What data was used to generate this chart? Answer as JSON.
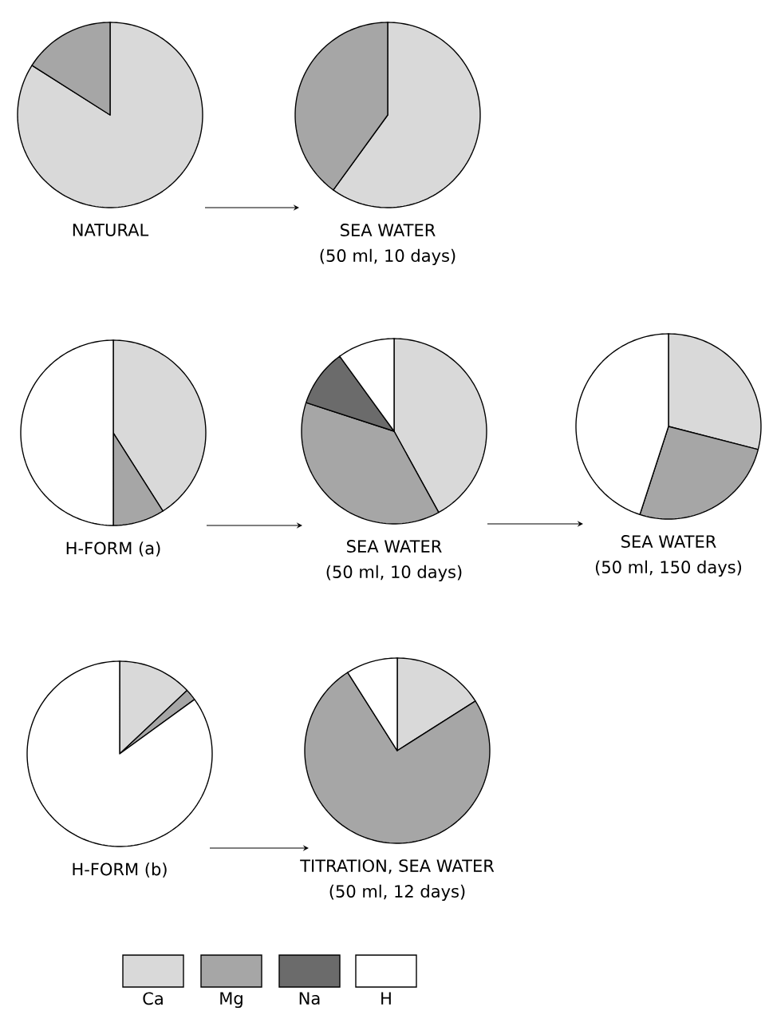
{
  "chart_data": [
    {
      "type": "pie",
      "title": "NATURAL",
      "categories": [
        null,
        null
      ],
      "values": [
        84,
        16
      ],
      "colors": [
        "#d9d9d9",
        "#a6a6a6"
      ]
    },
    {
      "type": "pie",
      "title": "SEA WATER",
      "subtitle": "(50 ml, 10 days)",
      "categories": [
        null,
        null
      ],
      "values": [
        60,
        40
      ],
      "colors": [
        "#d9d9d9",
        "#a6a6a6"
      ]
    },
    {
      "type": "pie",
      "title": "H-FORM (a)",
      "categories": [
        null,
        null,
        null
      ],
      "values": [
        41,
        9,
        50
      ],
      "colors": [
        "#d9d9d9",
        "#a6a6a6",
        "#ffffff"
      ]
    },
    {
      "type": "pie",
      "title": "SEA WATER",
      "subtitle": "(50 ml, 10 days)",
      "categories": [
        null,
        null,
        null,
        null
      ],
      "values": [
        42,
        38,
        10,
        10
      ],
      "colors": [
        "#d9d9d9",
        "#a6a6a6",
        "#6b6b6b",
        "#ffffff"
      ]
    },
    {
      "type": "pie",
      "title": "SEA WATER",
      "subtitle": "(50 ml, 150 days)",
      "categories": [
        null,
        null,
        null
      ],
      "values": [
        29,
        26,
        45
      ],
      "colors": [
        "#d9d9d9",
        "#a6a6a6",
        "#ffffff"
      ]
    },
    {
      "type": "pie",
      "title": "H-FORM (b)",
      "categories": [
        null,
        null,
        null
      ],
      "values": [
        13,
        2,
        85
      ],
      "colors": [
        "#d9d9d9",
        "#a6a6a6",
        "#ffffff"
      ]
    },
    {
      "type": "pie",
      "title": "TITRATION, SEA WATER",
      "subtitle": "(50 ml, 12 days)",
      "categories": [
        "Ca",
        "Mg",
        "Na",
        "H"
      ],
      "values": [
        16,
        75,
        0,
        9
      ],
      "colors": [
        "#d9d9d9",
        "#a6a6a6",
        "#6b6b6b",
        "#ffffff"
      ],
      "legend": "bottom"
    }
  ]
}
